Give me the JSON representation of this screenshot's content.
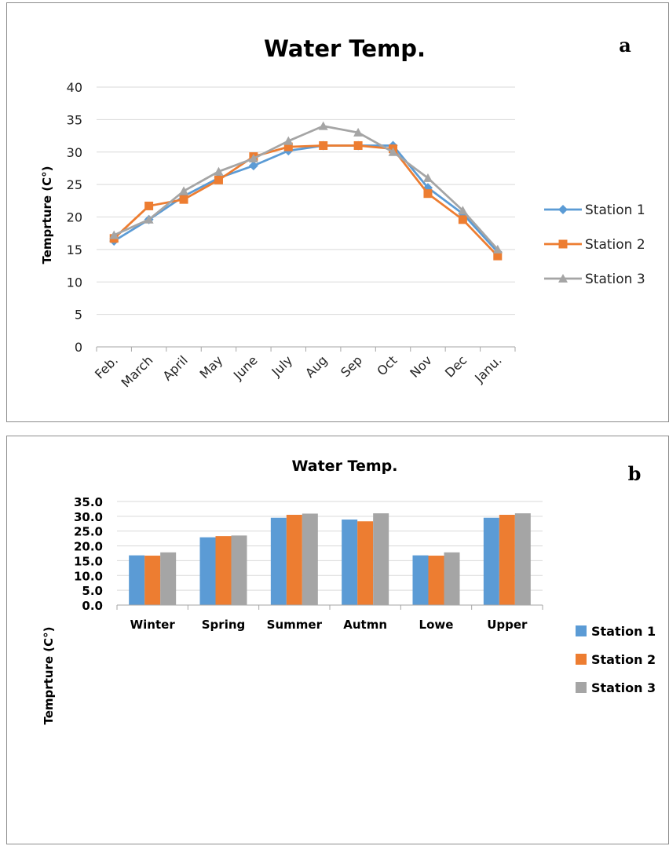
{
  "chart_data": [
    {
      "type": "line",
      "panel_label": "a",
      "title": "Water Temp.",
      "xlabel": "",
      "ylabel": "Temprture (C°)",
      "ylim": [
        0,
        40
      ],
      "yticks": [
        0,
        5,
        10,
        15,
        20,
        25,
        30,
        35,
        40
      ],
      "grid": true,
      "legend_position": "right",
      "categories": [
        "Feb.",
        "March",
        "April",
        "May",
        "June",
        "July",
        "Aug",
        "Sep",
        "Oct",
        "Nov",
        "Dec",
        "Janu."
      ],
      "series": [
        {
          "name": "Station 1",
          "color": "#5b9bd5",
          "marker": "diamond",
          "values": [
            16.3,
            19.6,
            23.2,
            26.0,
            27.9,
            30.2,
            31.0,
            31.0,
            31.0,
            24.5,
            20.5,
            14.6
          ]
        },
        {
          "name": "Station 2",
          "color": "#ed7d31",
          "marker": "square",
          "values": [
            16.7,
            21.7,
            22.7,
            25.7,
            29.3,
            30.8,
            31.0,
            31.0,
            30.5,
            23.6,
            19.6,
            14.0
          ]
        },
        {
          "name": "Station 3",
          "color": "#a5a5a5",
          "marker": "triangle",
          "values": [
            17.2,
            19.6,
            24.0,
            27.0,
            29.0,
            31.7,
            34.0,
            33.0,
            30.0,
            26.0,
            21.0,
            15.0
          ]
        }
      ]
    },
    {
      "type": "bar",
      "panel_label": "b",
      "title": "Water Temp.",
      "xlabel": "",
      "ylabel": "Temprture (C°)",
      "ylim": [
        0,
        35
      ],
      "yticks": [
        "0.0",
        "5.0",
        "10.0",
        "15.0",
        "20.0",
        "25.0",
        "30.0",
        "35.0"
      ],
      "grid": true,
      "legend_position": "right",
      "categories": [
        "Winter",
        "Spring",
        "Summer",
        "Autmn",
        "Lowe",
        "Upper"
      ],
      "series": [
        {
          "name": "Station 1",
          "color": "#5b9bd5",
          "values": [
            16.8,
            22.9,
            29.5,
            28.9,
            16.8,
            29.5
          ]
        },
        {
          "name": "Station 2",
          "color": "#ed7d31",
          "values": [
            16.7,
            23.3,
            30.5,
            28.3,
            16.7,
            30.5
          ]
        },
        {
          "name": "Station 3",
          "color": "#a5a5a5",
          "values": [
            17.8,
            23.5,
            30.9,
            31.0,
            17.8,
            31.0
          ]
        }
      ]
    }
  ]
}
